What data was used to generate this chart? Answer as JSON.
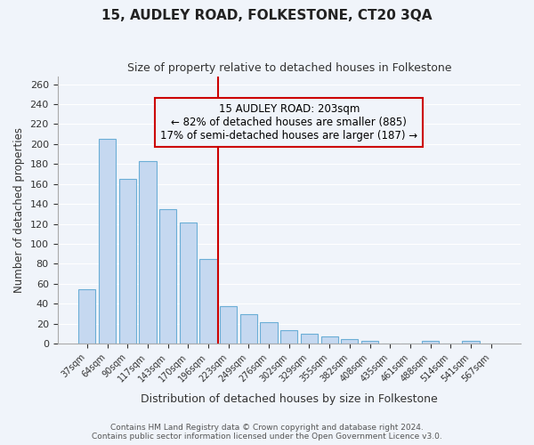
{
  "title": "15, AUDLEY ROAD, FOLKESTONE, CT20 3QA",
  "subtitle": "Size of property relative to detached houses in Folkestone",
  "xlabel": "Distribution of detached houses by size in Folkestone",
  "ylabel": "Number of detached properties",
  "bar_labels": [
    "37sqm",
    "64sqm",
    "90sqm",
    "117sqm",
    "143sqm",
    "170sqm",
    "196sqm",
    "223sqm",
    "249sqm",
    "276sqm",
    "302sqm",
    "329sqm",
    "355sqm",
    "382sqm",
    "408sqm",
    "435sqm",
    "461sqm",
    "488sqm",
    "514sqm",
    "541sqm",
    "567sqm"
  ],
  "bar_values": [
    55,
    205,
    165,
    183,
    135,
    121,
    85,
    38,
    30,
    22,
    14,
    10,
    7,
    5,
    3,
    0,
    0,
    3,
    0,
    3,
    0
  ],
  "bar_color": "#c5d8f0",
  "bar_edge_color": "#6baed6",
  "vline_x": 6,
  "vline_color": "#cc0000",
  "annotation_title": "15 AUDLEY ROAD: 203sqm",
  "annotation_line1": "← 82% of detached houses are smaller (885)",
  "annotation_line2": "17% of semi-detached houses are larger (187) →",
  "annotation_box_color": "#cc0000",
  "ylim": [
    0,
    268
  ],
  "yticks": [
    0,
    20,
    40,
    60,
    80,
    100,
    120,
    140,
    160,
    180,
    200,
    220,
    240,
    260
  ],
  "footer_line1": "Contains HM Land Registry data © Crown copyright and database right 2024.",
  "footer_line2": "Contains public sector information licensed under the Open Government Licence v3.0.",
  "background_color": "#f0f4fa",
  "grid_color": "#ffffff"
}
